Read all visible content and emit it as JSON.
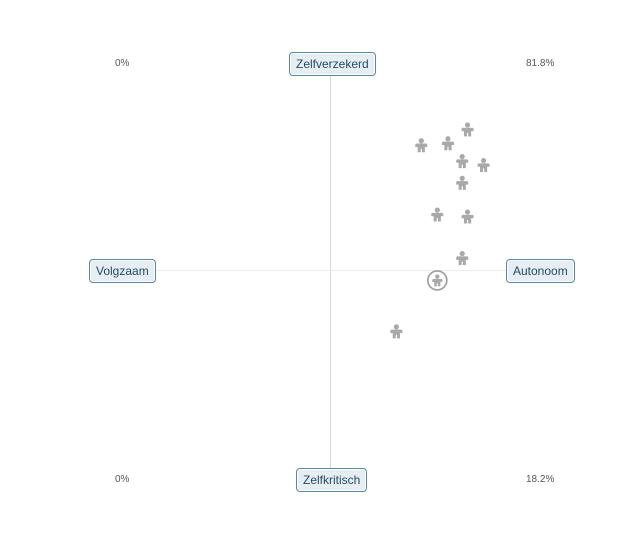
{
  "chart_data": {
    "type": "scatter",
    "axes": {
      "top": "Zelfverzekerd",
      "bottom": "Zelfkritisch",
      "left": "Volgzaam",
      "right": "Autonoom"
    },
    "xlim": [
      -1,
      1
    ],
    "ylim": [
      -1,
      1
    ],
    "corner_labels": {
      "top_left": "0%",
      "top_right": "81.8%",
      "bottom_left": "0%",
      "bottom_right": "18.2%"
    },
    "points": [
      {
        "x": 0.77,
        "y": 0.71
      },
      {
        "x": 0.51,
        "y": 0.63
      },
      {
        "x": 0.66,
        "y": 0.64
      },
      {
        "x": 0.74,
        "y": 0.55
      },
      {
        "x": 0.86,
        "y": 0.53
      },
      {
        "x": 0.74,
        "y": 0.44
      },
      {
        "x": 0.6,
        "y": 0.28
      },
      {
        "x": 0.77,
        "y": 0.27
      },
      {
        "x": 0.74,
        "y": 0.06
      },
      {
        "x": 0.37,
        "y": -0.31
      }
    ],
    "highlight": {
      "x": 0.6,
      "y": -0.05
    },
    "grid": false,
    "legend": "none"
  }
}
